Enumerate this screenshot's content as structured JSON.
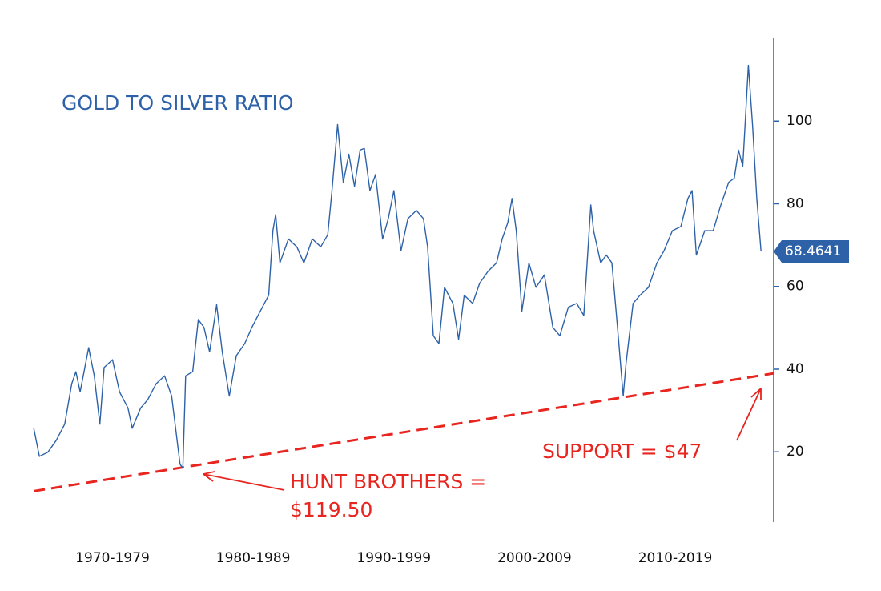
{
  "chart_data": {
    "type": "line",
    "title": "GOLD TO SILVER RATIO",
    "xlim": [
      1967,
      2022
    ],
    "xticks": [
      {
        "value": 1975,
        "label": "1970-1979"
      },
      {
        "value": 1985,
        "label": "1980-1989"
      },
      {
        "value": 1995,
        "label": "1990-1999"
      },
      {
        "value": 2005,
        "label": "2000-2009"
      },
      {
        "value": 2015,
        "label": "2010-2019"
      }
    ],
    "ylim": [
      3,
      120
    ],
    "yticks": [
      20,
      40,
      60,
      80,
      100
    ],
    "grid": false,
    "series": [
      {
        "color": "#2e62a8",
        "x": [
          1969.4,
          1969.8,
          1970.4,
          1971.0,
          1971.6,
          1972.1,
          1972.4,
          1972.7,
          1973.3,
          1973.7,
          1974.1,
          1974.4,
          1975.0,
          1975.5,
          1976.1,
          1976.4,
          1977.0,
          1977.5,
          1978.1,
          1978.7,
          1979.2,
          1979.8,
          1980.0,
          1980.2,
          1980.7,
          1981.1,
          1981.5,
          1981.9,
          1982.4,
          1982.8,
          1983.3,
          1983.8,
          1984.4,
          1984.9,
          1985.5,
          1986.1,
          1986.4,
          1986.6,
          1986.9,
          1987.5,
          1988.1,
          1988.6,
          1989.2,
          1989.8,
          1990.3,
          1990.6,
          1991.0,
          1991.4,
          1991.8,
          1992.2,
          1992.6,
          1992.9,
          1993.3,
          1993.7,
          1994.2,
          1994.6,
          1995.0,
          1995.5,
          1996.0,
          1996.6,
          1997.1,
          1997.4,
          1997.8,
          1998.2,
          1998.6,
          1999.2,
          1999.6,
          2000.0,
          2000.6,
          2001.1,
          2001.7,
          2002.3,
          2002.7,
          2003.1,
          2003.4,
          2003.7,
          2004.1,
          2004.6,
          2005.1,
          2005.7,
          2006.3,
          2006.8,
          2007.4,
          2008.0,
          2008.5,
          2009.0,
          2009.2,
          2009.7,
          2010.1,
          2010.5,
          2010.9,
          2011.3,
          2011.5,
          2012.0,
          2012.5,
          2013.1,
          2013.7,
          2014.2,
          2014.8,
          2015.4,
          2015.9,
          2016.2,
          2016.5,
          2017.1,
          2017.7,
          2018.2,
          2018.8,
          2019.2,
          2019.5,
          2019.8,
          2020.2,
          2020.5,
          2020.8,
          2021.1
        ],
        "values": [
          25.7,
          18.9,
          19.9,
          22.8,
          26.7,
          36.5,
          39.4,
          34.5,
          45.2,
          38.4,
          26.7,
          40.4,
          42.3,
          34.5,
          30.6,
          25.7,
          30.6,
          32.6,
          36.5,
          38.4,
          33.5,
          17.0,
          16.0,
          38.4,
          39.4,
          52.0,
          50.1,
          44.2,
          55.6,
          44.2,
          33.5,
          43.3,
          46.2,
          50.1,
          54.0,
          57.9,
          73.5,
          77.4,
          65.7,
          71.5,
          69.6,
          65.7,
          71.5,
          69.6,
          72.5,
          83.2,
          99.2,
          85.2,
          92.0,
          84.2,
          93.0,
          93.4,
          83.2,
          87.1,
          71.5,
          76.4,
          83.2,
          68.6,
          76.4,
          78.4,
          76.4,
          69.6,
          48.1,
          46.2,
          59.8,
          55.9,
          47.2,
          57.9,
          55.9,
          60.8,
          63.7,
          65.7,
          71.5,
          75.4,
          81.3,
          73.5,
          54.0,
          65.7,
          59.8,
          62.8,
          50.1,
          48.1,
          55.0,
          55.9,
          53.0,
          79.7,
          73.5,
          65.7,
          67.6,
          65.7,
          50.1,
          33.5,
          41.3,
          55.9,
          57.9,
          59.8,
          65.7,
          68.6,
          73.5,
          74.5,
          81.3,
          83.2,
          67.6,
          73.5,
          73.5,
          79.3,
          85.2,
          86.2,
          93.0,
          89.1,
          113.5,
          98.8,
          81.3,
          68.4641
        ]
      }
    ],
    "support_line": {
      "color": "#e8251f",
      "x": [
        1969.4,
        2022
      ],
      "values": [
        10.5,
        39.0
      ]
    },
    "annotations": [
      "HUNT BROTHERS =",
      "$119.50",
      "SUPPORT = $47"
    ]
  }
}
